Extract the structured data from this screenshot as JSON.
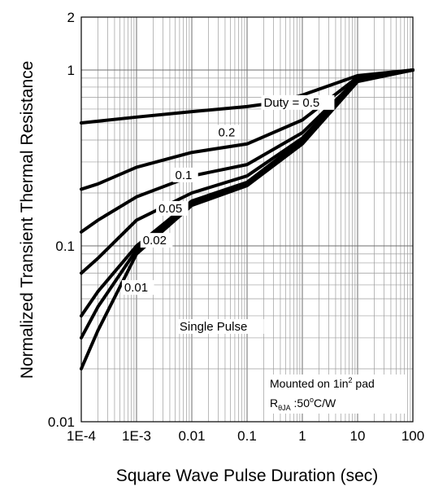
{
  "chart_data": {
    "type": "line",
    "title": "",
    "xlabel": "Square Wave Pulse Duration (sec)",
    "ylabel": "Normalized Transient Thermal Resistance",
    "x_scale": "log",
    "y_scale": "log",
    "xlim": [
      0.0001,
      100
    ],
    "ylim": [
      0.01,
      2
    ],
    "grid": true,
    "x_ticks": [
      {
        "value": 0.0001,
        "label": "1E-4"
      },
      {
        "value": 0.001,
        "label": "1E-3"
      },
      {
        "value": 0.01,
        "label": "0.01"
      },
      {
        "value": 0.1,
        "label": "0.1"
      },
      {
        "value": 1,
        "label": "1"
      },
      {
        "value": 10,
        "label": "10"
      },
      {
        "value": 100,
        "label": "100"
      }
    ],
    "y_ticks": [
      {
        "value": 0.01,
        "label": "0.01"
      },
      {
        "value": 0.1,
        "label": "0.1"
      },
      {
        "value": 1,
        "label": "1"
      },
      {
        "value": 2,
        "label": "2"
      }
    ],
    "series": [
      {
        "name": "Duty = 0.5",
        "x": [
          0.0001,
          0.001,
          0.01,
          0.1,
          0.3,
          1,
          10,
          100
        ],
        "y": [
          0.5,
          0.54,
          0.58,
          0.62,
          0.65,
          0.72,
          0.93,
          1.0
        ]
      },
      {
        "name": "0.2",
        "x": [
          0.0001,
          0.0002,
          0.001,
          0.01,
          0.1,
          1,
          10,
          100
        ],
        "y": [
          0.21,
          0.225,
          0.28,
          0.34,
          0.38,
          0.52,
          0.91,
          1.0
        ]
      },
      {
        "name": "0.1",
        "x": [
          0.0001,
          0.0002,
          0.001,
          0.01,
          0.1,
          1,
          10,
          100
        ],
        "y": [
          0.12,
          0.14,
          0.19,
          0.25,
          0.29,
          0.44,
          0.89,
          1.0
        ]
      },
      {
        "name": "0.05",
        "x": [
          0.0001,
          0.0002,
          0.001,
          0.01,
          0.1,
          1,
          10,
          100
        ],
        "y": [
          0.07,
          0.085,
          0.14,
          0.2,
          0.25,
          0.41,
          0.88,
          1.0
        ]
      },
      {
        "name": "0.02",
        "x": [
          0.0001,
          0.0002,
          0.001,
          0.01,
          0.1,
          1,
          10,
          100
        ],
        "y": [
          0.04,
          0.055,
          0.1,
          0.18,
          0.23,
          0.4,
          0.87,
          1.0
        ]
      },
      {
        "name": "0.01",
        "x": [
          0.0001,
          0.0002,
          0.001,
          0.01,
          0.1,
          1,
          10,
          100
        ],
        "y": [
          0.03,
          0.045,
          0.095,
          0.175,
          0.225,
          0.39,
          0.87,
          1.0
        ]
      },
      {
        "name": "Single Pulse",
        "x": [
          0.0001,
          0.0002,
          0.001,
          0.01,
          0.1,
          1,
          10,
          100
        ],
        "y": [
          0.02,
          0.033,
          0.09,
          0.17,
          0.22,
          0.38,
          0.86,
          1.0
        ]
      }
    ],
    "curve_labels": [
      {
        "text": "Duty = 0.5",
        "x": 0.2,
        "y": 0.62
      },
      {
        "text": "0.2",
        "x": 0.03,
        "y": 0.42
      },
      {
        "text": "0.1",
        "x": 0.005,
        "y": 0.24
      },
      {
        "text": "0.05",
        "x": 0.0025,
        "y": 0.155
      },
      {
        "text": "0.02",
        "x": 0.0013,
        "y": 0.102
      },
      {
        "text": "0.01",
        "x": 0.0006,
        "y": 0.055
      },
      {
        "text": "Single Pulse",
        "x": 0.006,
        "y": 0.033
      }
    ],
    "annotation": {
      "line1": "Mounted on 1in",
      "line1_sup": "2",
      "line1_end": " pad",
      "line2_r": "R",
      "line2_sub": "θJA",
      "line2_rest": " :50",
      "line2_deg": "o",
      "line2_unit": "C/W"
    }
  }
}
